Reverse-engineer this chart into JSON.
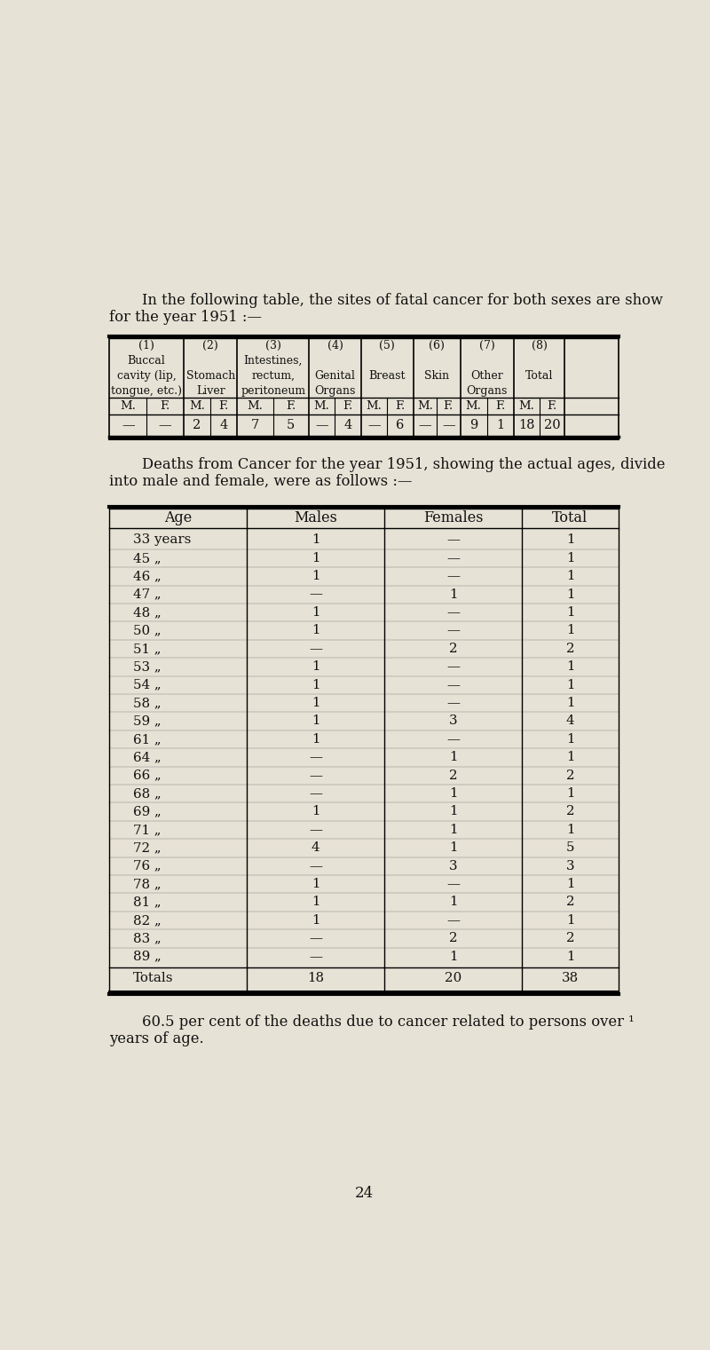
{
  "bg_color": "#e6e2d5",
  "text_color": "#111111",
  "page_number": "24",
  "intro_text_line1": "    In the following table, the sites of fatal cancer for both sexes are show",
  "intro_text_line2": "for the year 1951 :—",
  "table1": {
    "col_headers": [
      "(1)\nBuccal\ncavity (lip,\ntongue, etc.)",
      "(2)\n\nStomach\nLiver",
      "(3)\nIntestines,\nrectum,\nperitoneum",
      "(4)\n\nGenital\nOrgans",
      "(5)\n\nBreast",
      "(6)\n\nSkin",
      "(7)\n\nOther\nOrgans",
      "(8)\n\nTotal"
    ],
    "data_row": [
      "—",
      "—",
      "2",
      "4",
      "7",
      "5",
      "—",
      "4",
      "—",
      "6",
      "—",
      "—",
      "9",
      "1",
      "18",
      "20"
    ]
  },
  "middle_text_line1": "    Deaths from Cancer for the year 1951, showing the actual ages, divide",
  "middle_text_line2": "into male and female, were as follows :—",
  "table2": {
    "headers": [
      "Age",
      "Males",
      "Females",
      "Total"
    ],
    "rows": [
      [
        "33 years",
        "1",
        "—",
        "1"
      ],
      [
        "45 „",
        "1",
        "—",
        "1"
      ],
      [
        "46 „",
        "1",
        "—",
        "1"
      ],
      [
        "47 „",
        "—",
        "1",
        "1"
      ],
      [
        "48 „",
        "1",
        "—",
        "1"
      ],
      [
        "50 „",
        "1",
        "—",
        "1"
      ],
      [
        "51 „",
        "—",
        "2",
        "2"
      ],
      [
        "53 „",
        "1",
        "—",
        "1"
      ],
      [
        "54 „",
        "1",
        "—",
        "1"
      ],
      [
        "58 „",
        "1",
        "—",
        "1"
      ],
      [
        "59 „",
        "1",
        "3",
        "4"
      ],
      [
        "61 „",
        "1",
        "—",
        "1"
      ],
      [
        "64 „",
        "—",
        "1",
        "1"
      ],
      [
        "66 „",
        "—",
        "2",
        "2"
      ],
      [
        "68 „",
        "—",
        "1",
        "1"
      ],
      [
        "69 „",
        "1",
        "1",
        "2"
      ],
      [
        "71 „",
        "—",
        "1",
        "1"
      ],
      [
        "72 „",
        "4",
        "1",
        "5"
      ],
      [
        "76 „",
        "—",
        "3",
        "3"
      ],
      [
        "78 „",
        "1",
        "—",
        "1"
      ],
      [
        "81 „",
        "1",
        "1",
        "2"
      ],
      [
        "82 „",
        "1",
        "—",
        "1"
      ],
      [
        "83 „",
        "—",
        "2",
        "2"
      ],
      [
        "89 „",
        "—",
        "1",
        "1"
      ]
    ],
    "totals_row": [
      "Totals",
      "18",
      "20",
      "38"
    ]
  },
  "footer_text_line1": "    60.5 per cent of the deaths due to cancer related to persons over ¹",
  "footer_text_line2": "years of age."
}
